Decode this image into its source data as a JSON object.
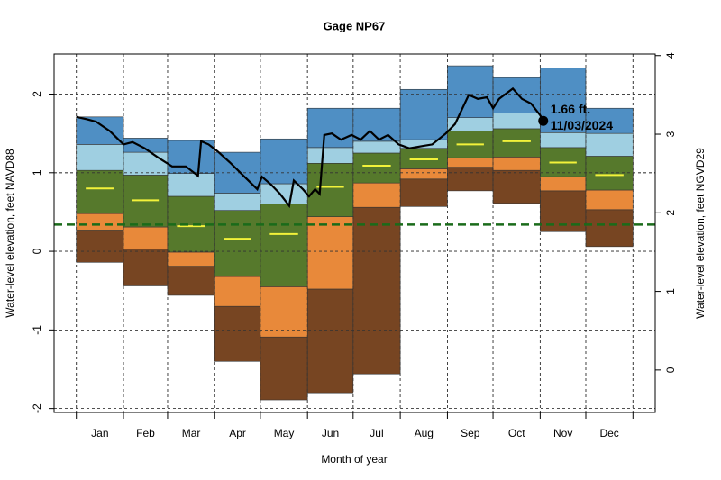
{
  "chart_data": {
    "type": "band",
    "title": "Gage NP67",
    "x_label": "Month of year",
    "y_label": "Water-level elevation, feet NAVD88",
    "y2_label": "Water-level elevation, feet NGVD29",
    "categories": [
      "Jan",
      "Feb",
      "Mar",
      "Apr",
      "May",
      "Jun",
      "Jul",
      "Aug",
      "Sep",
      "Oct",
      "Nov",
      "Dec"
    ],
    "xticks": [
      1,
      32,
      61,
      92,
      122,
      153,
      183,
      214,
      245,
      275,
      306,
      336,
      367
    ],
    "xlim": [
      -13.64,
      381.64
    ],
    "ylim": [
      -2.05,
      2.51
    ],
    "yticks": [
      -2,
      -1,
      0,
      1,
      2
    ],
    "y2lim": [
      -0.54,
      4.02
    ],
    "y2ticks": [
      0,
      1,
      2,
      3,
      4
    ],
    "grid": true,
    "band_colors": [
      "#774522",
      "#e8893a",
      "#56792c",
      "#9fcfe1",
      "#4f8fc4"
    ],
    "band_edges": [
      [
        -0.14,
        -0.44,
        -0.56,
        -1.4,
        -1.89,
        -1.8,
        -1.56,
        0.57,
        0.77,
        0.61,
        0.25,
        0.06
      ],
      [
        0.27,
        0.03,
        -0.19,
        -0.7,
        -1.09,
        -0.48,
        0.56,
        0.92,
        1.07,
        1.03,
        0.77,
        0.53
      ],
      [
        0.48,
        0.31,
        -0.01,
        -0.32,
        -0.45,
        0.44,
        0.87,
        1.05,
        1.19,
        1.2,
        0.95,
        0.78
      ],
      [
        1.03,
        0.97,
        0.7,
        0.52,
        0.6,
        1.12,
        1.25,
        1.31,
        1.53,
        1.56,
        1.32,
        1.21
      ],
      [
        1.36,
        1.26,
        0.99,
        0.74,
        0.86,
        1.32,
        1.4,
        1.42,
        1.7,
        1.76,
        1.51,
        1.5
      ],
      [
        1.71,
        1.44,
        1.41,
        1.26,
        1.43,
        1.82,
        1.82,
        2.06,
        2.36,
        2.21,
        2.33,
        1.82
      ]
    ],
    "median": {
      "color": "#f2f23a",
      "values": [
        0.8,
        0.65,
        0.32,
        0.16,
        0.22,
        0.82,
        1.09,
        1.17,
        1.36,
        1.4,
        1.13,
        0.97
      ]
    },
    "reference_line": {
      "value": 0.34,
      "color": "#1a6b1a"
    },
    "observed": {
      "color": "#000000",
      "x": [
        1,
        8,
        14,
        23,
        32,
        38,
        46,
        55,
        64,
        73,
        81,
        83,
        88,
        94,
        102,
        111,
        120,
        123,
        129,
        135,
        141,
        144,
        150,
        154,
        158,
        161,
        164,
        169,
        175,
        182,
        188,
        194,
        200,
        206,
        213,
        220,
        229,
        235,
        244,
        250,
        259,
        265,
        271,
        275,
        279,
        288,
        294,
        300,
        306,
        308
      ],
      "values": [
        1.71,
        1.68,
        1.65,
        1.53,
        1.36,
        1.39,
        1.31,
        1.19,
        1.08,
        1.08,
        0.96,
        1.4,
        1.36,
        1.27,
        1.13,
        0.96,
        0.79,
        0.95,
        0.85,
        0.73,
        0.58,
        0.9,
        0.79,
        0.7,
        0.79,
        0.73,
        1.48,
        1.5,
        1.42,
        1.48,
        1.42,
        1.53,
        1.42,
        1.48,
        1.36,
        1.31,
        1.34,
        1.36,
        1.5,
        1.62,
        1.99,
        1.94,
        1.96,
        1.82,
        1.94,
        2.07,
        1.94,
        1.88,
        1.73,
        1.66
      ],
      "value_label": "1.66 ft.",
      "date": "11/03/2024"
    }
  }
}
